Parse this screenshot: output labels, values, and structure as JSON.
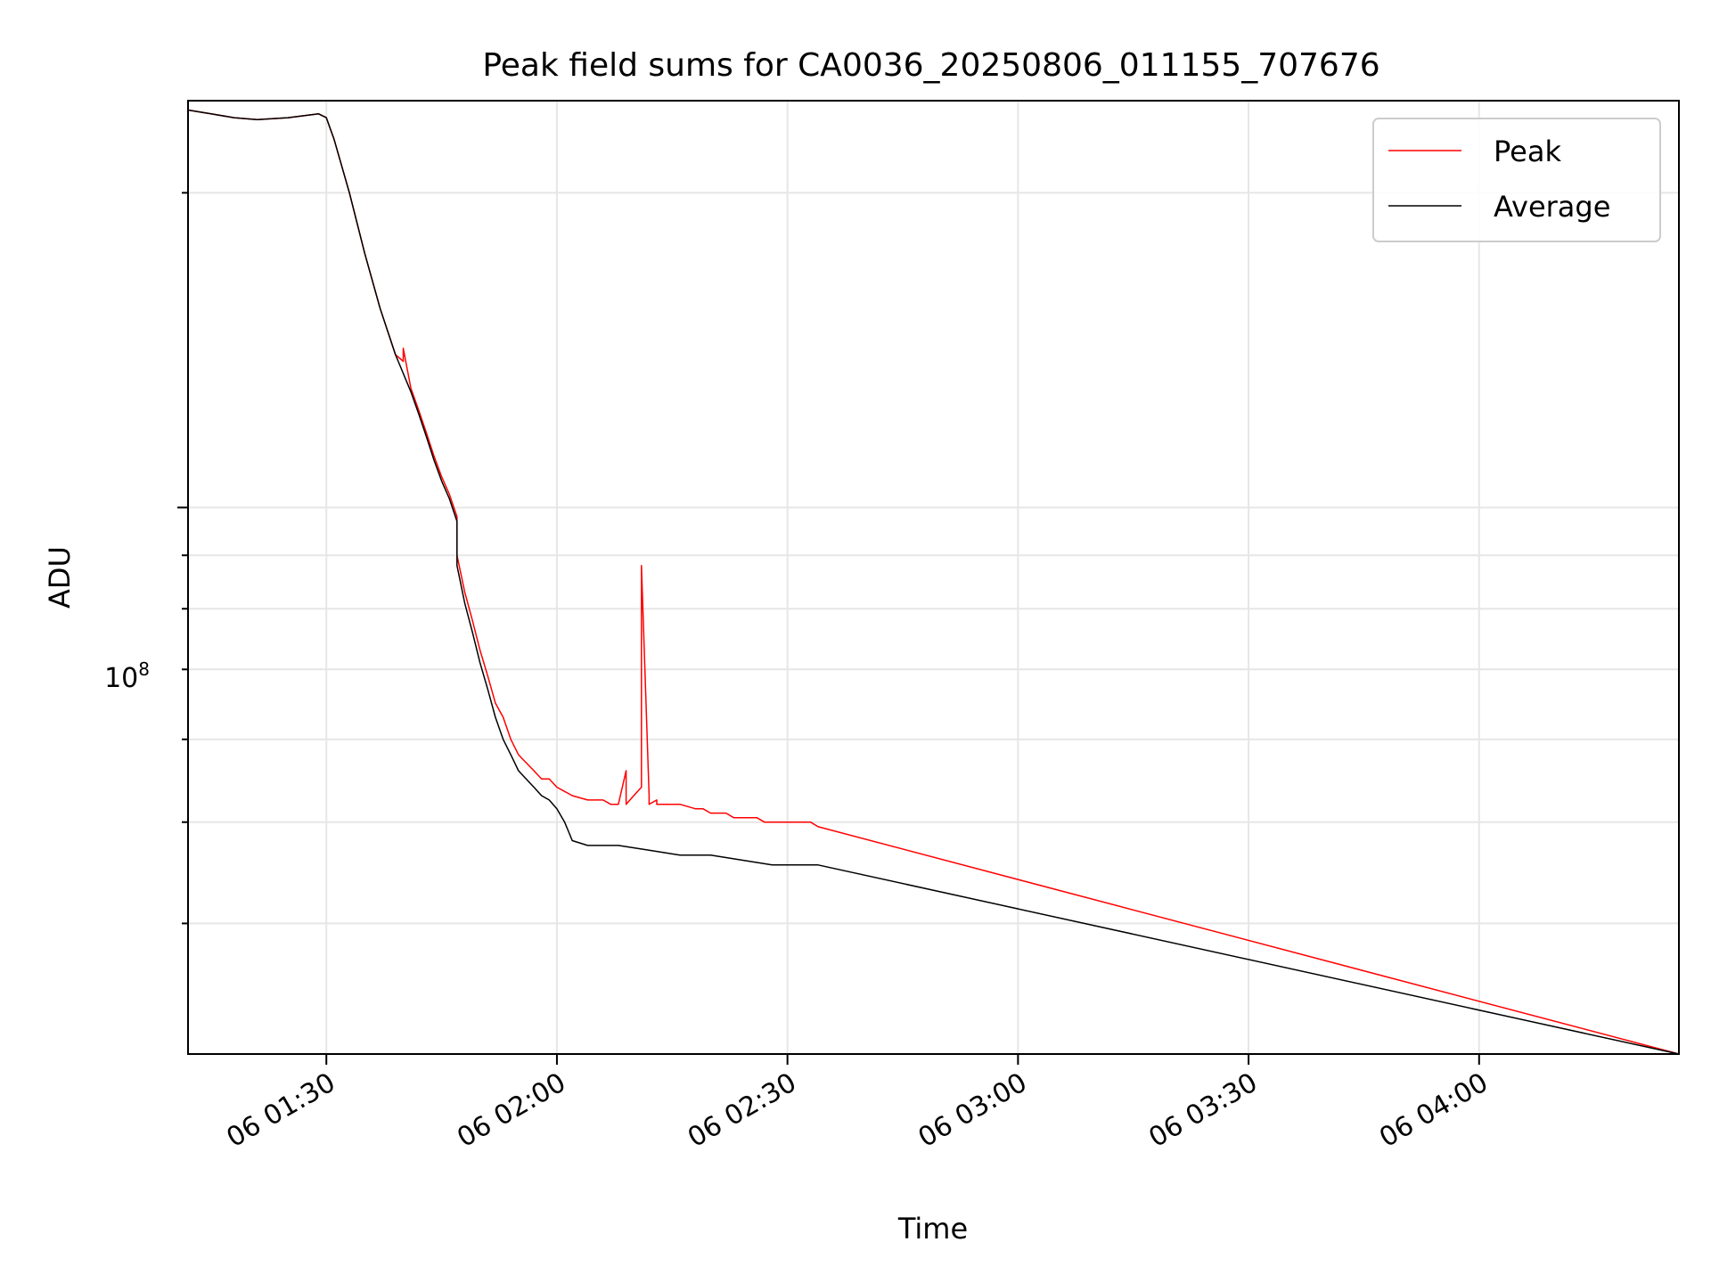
{
  "chart_data": {
    "type": "line",
    "title": "Peak field sums for CA0036_20250806_011155_707676",
    "xlabel": "Time",
    "ylabel": "ADU",
    "y_scale": "log",
    "ylim": [
      30000000,
      245000000
    ],
    "xlim": [
      "2025-08-06 01:12",
      "2025-08-06 04:26"
    ],
    "x_ticks": [
      "2025-08-06 01:30",
      "2025-08-06 02:00",
      "2025-08-06 02:30",
      "2025-08-06 03:00",
      "2025-08-06 03:30",
      "2025-08-06 04:00"
    ],
    "x_tick_labels": [
      "06 01:30",
      "06 02:00",
      "06 02:30",
      "06 03:00",
      "06 03:30",
      "06 04:00"
    ],
    "y_major_ticks": [
      100000000
    ],
    "y_major_tick_label_base": "10",
    "y_major_tick_label_exp": "8",
    "y_minor_ticks": [
      40000000,
      50000000,
      60000000,
      70000000,
      80000000,
      90000000,
      200000000
    ],
    "grid": true,
    "legend": "top-right",
    "series": [
      {
        "name": "Peak",
        "color": "#ff0000",
        "x": [
          "2025-08-06 01:12",
          "2025-08-06 01:15",
          "2025-08-06 01:18",
          "2025-08-06 01:21",
          "2025-08-06 01:25",
          "2025-08-06 01:29",
          "2025-08-06 01:30",
          "2025-08-06 01:31",
          "2025-08-06 01:33",
          "2025-08-06 01:35",
          "2025-08-06 01:37",
          "2025-08-06 01:39",
          "2025-08-06 01:40",
          "2025-08-06 01:40",
          "2025-08-06 01:41",
          "2025-08-06 01:42",
          "2025-08-06 01:43",
          "2025-08-06 01:44",
          "2025-08-06 01:45",
          "2025-08-06 01:46",
          "2025-08-06 01:47",
          "2025-08-06 01:47",
          "2025-08-06 01:48",
          "2025-08-06 01:49",
          "2025-08-06 01:50",
          "2025-08-06 01:51",
          "2025-08-06 01:52",
          "2025-08-06 01:53",
          "2025-08-06 01:54",
          "2025-08-06 01:55",
          "2025-08-06 01:56",
          "2025-08-06 01:57",
          "2025-08-06 01:58",
          "2025-08-06 01:59",
          "2025-08-06 02:00",
          "2025-08-06 02:01",
          "2025-08-06 02:02",
          "2025-08-06 02:04",
          "2025-08-06 02:06",
          "2025-08-06 02:07",
          "2025-08-06 02:08",
          "2025-08-06 02:09",
          "2025-08-06 02:09",
          "2025-08-06 02:10",
          "2025-08-06 02:11",
          "2025-08-06 02:11",
          "2025-08-06 02:12",
          "2025-08-06 02:12",
          "2025-08-06 02:13",
          "2025-08-06 02:13",
          "2025-08-06 02:14",
          "2025-08-06 02:15",
          "2025-08-06 02:16",
          "2025-08-06 02:18",
          "2025-08-06 02:19",
          "2025-08-06 02:20",
          "2025-08-06 02:21",
          "2025-08-06 02:22",
          "2025-08-06 02:23",
          "2025-08-06 02:25",
          "2025-08-06 02:26",
          "2025-08-06 02:27",
          "2025-08-06 02:28",
          "2025-08-06 02:29",
          "2025-08-06 02:30",
          "2025-08-06 02:31",
          "2025-08-06 02:32",
          "2025-08-06 02:33",
          "2025-08-06 02:34",
          "2025-08-06 04:26"
        ],
        "y": [
          240000000,
          238000000,
          236000000,
          235000000,
          236000000,
          238000000,
          236000000,
          225000000,
          200000000,
          175000000,
          155000000,
          140000000,
          138000000,
          142000000,
          130000000,
          124000000,
          118000000,
          112000000,
          107000000,
          103000000,
          98000000,
          90000000,
          83000000,
          78000000,
          73000000,
          69000000,
          65000000,
          63000000,
          60000000,
          58000000,
          57000000,
          56000000,
          55000000,
          55000000,
          54000000,
          53500000,
          53000000,
          52500000,
          52500000,
          52000000,
          52000000,
          56000000,
          52000000,
          53000000,
          54000000,
          88000000,
          53000000,
          52000000,
          52500000,
          52000000,
          52000000,
          52000000,
          52000000,
          51500000,
          51500000,
          51000000,
          51000000,
          51000000,
          50500000,
          50500000,
          50500000,
          50000000,
          50000000,
          50000000,
          50000000,
          50000000,
          50000000,
          50000000,
          49500000,
          30000000
        ]
      },
      {
        "name": "Average",
        "color": "#000000",
        "x": [
          "2025-08-06 01:12",
          "2025-08-06 01:15",
          "2025-08-06 01:18",
          "2025-08-06 01:21",
          "2025-08-06 01:25",
          "2025-08-06 01:29",
          "2025-08-06 01:30",
          "2025-08-06 01:31",
          "2025-08-06 01:33",
          "2025-08-06 01:35",
          "2025-08-06 01:37",
          "2025-08-06 01:39",
          "2025-08-06 01:41",
          "2025-08-06 01:42",
          "2025-08-06 01:43",
          "2025-08-06 01:44",
          "2025-08-06 01:45",
          "2025-08-06 01:46",
          "2025-08-06 01:47",
          "2025-08-06 01:47",
          "2025-08-06 01:48",
          "2025-08-06 01:49",
          "2025-08-06 01:50",
          "2025-08-06 01:51",
          "2025-08-06 01:52",
          "2025-08-06 01:53",
          "2025-08-06 01:54",
          "2025-08-06 01:55",
          "2025-08-06 01:56",
          "2025-08-06 01:57",
          "2025-08-06 01:58",
          "2025-08-06 01:59",
          "2025-08-06 02:00",
          "2025-08-06 02:01",
          "2025-08-06 02:02",
          "2025-08-06 02:04",
          "2025-08-06 02:08",
          "2025-08-06 02:12",
          "2025-08-06 02:16",
          "2025-08-06 02:20",
          "2025-08-06 02:24",
          "2025-08-06 02:28",
          "2025-08-06 02:31",
          "2025-08-06 02:34",
          "2025-08-06 04:26"
        ],
        "y": [
          240000000,
          238000000,
          236000000,
          235000000,
          236000000,
          238000000,
          236000000,
          225000000,
          200000000,
          175000000,
          155000000,
          140000000,
          129000000,
          123000000,
          117000000,
          111000000,
          106000000,
          102000000,
          97000000,
          88000000,
          81000000,
          76000000,
          71000000,
          67000000,
          63000000,
          60000000,
          58000000,
          56000000,
          55000000,
          54000000,
          53000000,
          52500000,
          51500000,
          50000000,
          48000000,
          47500000,
          47500000,
          47000000,
          46500000,
          46500000,
          46000000,
          45500000,
          45500000,
          45500000,
          30000000
        ]
      }
    ]
  }
}
